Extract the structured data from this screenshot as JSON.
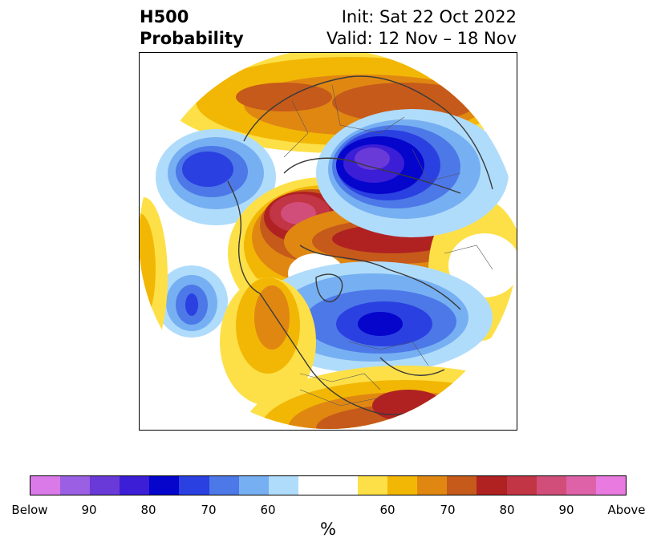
{
  "title": {
    "left_line1": "H500",
    "left_line2": "Probability",
    "right_line1": "Init: Sat 22 Oct 2022",
    "right_line2": "Valid: 12 Nov – 18 Nov"
  },
  "colorbar": {
    "unit": "%",
    "segments": [
      {
        "color": "#d97ae8",
        "weight": 1
      },
      {
        "color": "#9a5fe3",
        "weight": 1
      },
      {
        "color": "#6a3ad8",
        "weight": 1
      },
      {
        "color": "#3b1ed6",
        "weight": 1
      },
      {
        "color": "#0505cc",
        "weight": 1
      },
      {
        "color": "#2a40e0",
        "weight": 1
      },
      {
        "color": "#4d78e8",
        "weight": 1
      },
      {
        "color": "#76b0f2",
        "weight": 1
      },
      {
        "color": "#b0dcfb",
        "weight": 1
      },
      {
        "color": "#ffffff",
        "weight": 2
      },
      {
        "color": "#fde047",
        "weight": 1
      },
      {
        "color": "#f2b705",
        "weight": 1
      },
      {
        "color": "#e08712",
        "weight": 1
      },
      {
        "color": "#c65a1a",
        "weight": 1
      },
      {
        "color": "#b02222",
        "weight": 1
      },
      {
        "color": "#c23545",
        "weight": 1
      },
      {
        "color": "#d14e7a",
        "weight": 1
      },
      {
        "color": "#de62a8",
        "weight": 1
      },
      {
        "color": "#e87ae0",
        "weight": 1
      }
    ],
    "ticks": [
      "Below",
      "90",
      "80",
      "70",
      "60",
      "60",
      "70",
      "80",
      "90",
      "Above"
    ]
  }
}
